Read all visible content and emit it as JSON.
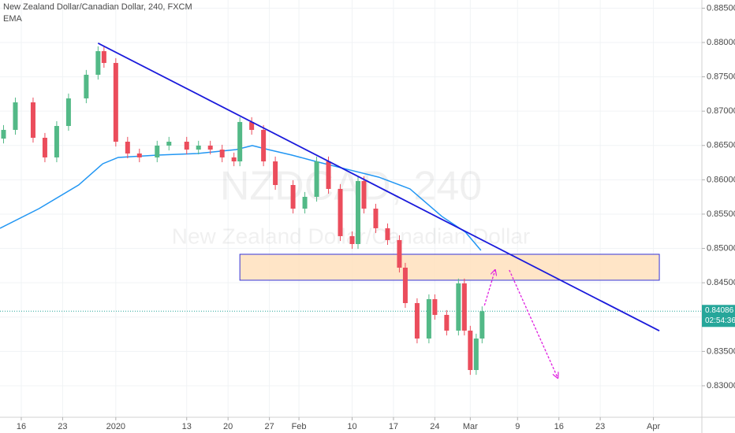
{
  "header": {
    "title": "New Zealand Dollar/Canadian Dollar, 240, FXCM",
    "indicator": "EMA"
  },
  "watermark": {
    "symbol": "NZDCAD, 240",
    "name": "New Zealand Dollar/Canadian Dollar"
  },
  "chart_data": {
    "type": "candlestick",
    "x": [
      -3,
      -1,
      2,
      4,
      6,
      8,
      11,
      13,
      14,
      16,
      18,
      20,
      23,
      25,
      28,
      30,
      32,
      34,
      36,
      37,
      39,
      41,
      43,
      46,
      48,
      50,
      52,
      54,
      56,
      57,
      58,
      60,
      62,
      64,
      65,
      67,
      69,
      70,
      72,
      74,
      75,
      76,
      77,
      78
    ],
    "open": [
      0.866,
      0.86727,
      0.87128,
      0.86612,
      0.86326,
      0.86784,
      0.87186,
      0.8753,
      0.87874,
      0.87702,
      0.86555,
      0.86383,
      0.86326,
      0.86498,
      0.86555,
      0.8644,
      0.86498,
      0.8644,
      0.86326,
      0.86268,
      0.86842,
      0.86727,
      0.86268,
      0.85924,
      0.8558,
      0.85752,
      0.86268,
      0.85867,
      0.85179,
      0.85064,
      0.85982,
      0.8558,
      0.85294,
      0.85122,
      0.8472,
      0.84204,
      0.83688,
      0.84261,
      0.84032,
      0.83803,
      0.84491,
      0.83803,
      0.83229,
      0.83688
    ],
    "high": [
      0.86797,
      0.87198,
      0.87198,
      0.86682,
      0.86854,
      0.87256,
      0.876,
      0.87944,
      0.87944,
      0.87772,
      0.86625,
      0.86453,
      0.86568,
      0.86625,
      0.86625,
      0.86568,
      0.86568,
      0.8651,
      0.86396,
      0.86912,
      0.86912,
      0.86797,
      0.86338,
      0.85994,
      0.85822,
      0.86338,
      0.86338,
      0.85937,
      0.85249,
      0.86052,
      0.86052,
      0.8565,
      0.85364,
      0.85192,
      0.8479,
      0.84274,
      0.84331,
      0.84331,
      0.84102,
      0.84561,
      0.84561,
      0.83873,
      0.83758,
      0.84156
    ],
    "low": [
      0.8653,
      0.86657,
      0.86542,
      0.86256,
      0.86256,
      0.86714,
      0.87116,
      0.8746,
      0.87632,
      0.86485,
      0.86313,
      0.86256,
      0.86256,
      0.86428,
      0.8637,
      0.8637,
      0.8637,
      0.86256,
      0.86198,
      0.86198,
      0.86657,
      0.86198,
      0.85854,
      0.8551,
      0.8551,
      0.85682,
      0.85797,
      0.85109,
      0.84994,
      0.84994,
      0.8551,
      0.85224,
      0.85052,
      0.8465,
      0.84134,
      0.83618,
      0.83618,
      0.83962,
      0.83733,
      0.83733,
      0.83733,
      0.83159,
      0.83159,
      0.83618
    ],
    "close": [
      0.86727,
      0.87128,
      0.86612,
      0.86326,
      0.86784,
      0.87186,
      0.8753,
      0.87874,
      0.87702,
      0.86555,
      0.86383,
      0.86326,
      0.86498,
      0.86555,
      0.8644,
      0.86498,
      0.8644,
      0.86326,
      0.86268,
      0.86842,
      0.86727,
      0.86268,
      0.85924,
      0.8558,
      0.85752,
      0.86268,
      0.85867,
      0.85179,
      0.85064,
      0.85982,
      0.8558,
      0.85294,
      0.85122,
      0.8472,
      0.84204,
      0.83688,
      0.84261,
      0.84032,
      0.83803,
      0.84491,
      0.83803,
      0.83229,
      0.83688,
      0.84086
    ],
    "up_color": "#53b987",
    "down_color": "#eb4d5c",
    "xlim": [
      -3.6,
      115.2
    ],
    "ylim": [
      0.82541,
      0.88619
    ],
    "xticks": [
      {
        "value": 0,
        "label": "16"
      },
      {
        "value": 7,
        "label": "23"
      },
      {
        "value": 16,
        "label": "2020"
      },
      {
        "value": 28,
        "label": "13"
      },
      {
        "value": 35,
        "label": "20"
      },
      {
        "value": 42,
        "label": "27"
      },
      {
        "value": 47,
        "label": "Feb"
      },
      {
        "value": 56,
        "label": "10"
      },
      {
        "value": 63,
        "label": "17"
      },
      {
        "value": 70,
        "label": "24"
      },
      {
        "value": 76,
        "label": "Mar"
      },
      {
        "value": 84,
        "label": "9"
      },
      {
        "value": 91,
        "label": "16"
      },
      {
        "value": 98,
        "label": "23"
      },
      {
        "value": 107,
        "label": "Apr"
      }
    ],
    "yticks": [
      {
        "value": 0.83,
        "label": "0.83000"
      },
      {
        "value": 0.835,
        "label": "0.83500"
      },
      {
        "value": 0.84,
        "label": "0.84000"
      },
      {
        "value": 0.845,
        "label": "0.84500"
      },
      {
        "value": 0.85,
        "label": "0.85000"
      },
      {
        "value": 0.855,
        "label": "0.85500"
      },
      {
        "value": 0.86,
        "label": "0.86000"
      },
      {
        "value": 0.865,
        "label": "0.86500"
      },
      {
        "value": 0.87,
        "label": "0.87000"
      },
      {
        "value": 0.875,
        "label": "0.87500"
      },
      {
        "value": 0.88,
        "label": "0.88000"
      },
      {
        "value": 0.885,
        "label": "0.88500"
      }
    ],
    "ema": {
      "x": [
        -3.6,
        3,
        9.7,
        13.8,
        16.4,
        23.1,
        29.8,
        36.4,
        39.1,
        41.8,
        45.8,
        49.8,
        55.1,
        60.5,
        65.8,
        71.2,
        75.2,
        77.8
      ],
      "values": [
        0.85294,
        0.8558,
        0.85924,
        0.86234,
        0.86326,
        0.8636,
        0.86383,
        0.8644,
        0.86498,
        0.8644,
        0.8636,
        0.86268,
        0.86154,
        0.86039,
        0.85867,
        0.85466,
        0.85236,
        0.84972
      ],
      "color": "#2196f3"
    },
    "trendline": {
      "x": [
        13,
        108
      ],
      "values": [
        0.8799,
        0.838
      ],
      "color": "#1a1adb"
    },
    "zone": {
      "x": [
        37,
        108
      ],
      "values": [
        0.84915,
        0.84537
      ],
      "fill": "#ffe0bd",
      "stroke": "#3434d8"
    },
    "arrows": [
      {
        "x": [
          78.4,
          80.2
        ],
        "values": [
          0.8417,
          0.84686
        ]
      },
      {
        "x": [
          82.6,
          90.8
        ],
        "values": [
          0.84686,
          0.83115
        ]
      }
    ],
    "arrow_color": "#e020e0",
    "last_price": {
      "value": 0.84086,
      "label": "0.84086",
      "countdown": "02:54:36",
      "color": "#26a69a"
    }
  }
}
